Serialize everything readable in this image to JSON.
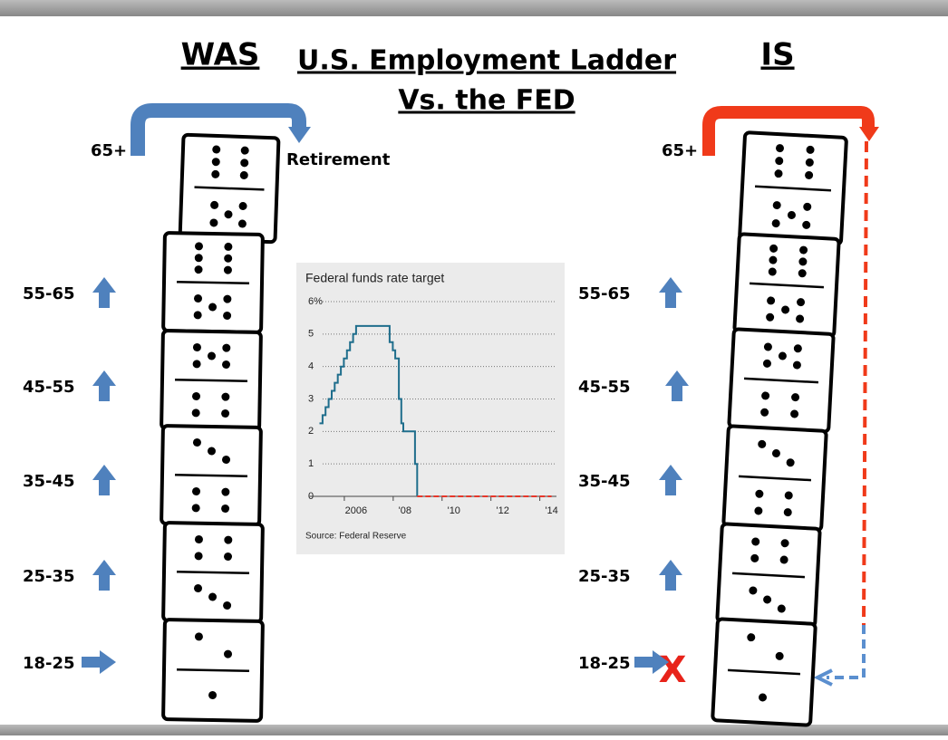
{
  "slide": {
    "title_line1": "U.S. Employment Ladder",
    "title_line2": "Vs. the FED",
    "left_heading": "WAS",
    "right_heading": "IS",
    "left_top_label": "65+",
    "retirement": "Retirement",
    "right_top_label": "65+",
    "left_ages": [
      "55-65",
      "45-55",
      "35-45",
      "25-35",
      "18-25"
    ],
    "right_ages": [
      "55-65",
      "45-55",
      "35-45",
      "25-35",
      "18-25"
    ],
    "blocked_mark": "X"
  },
  "chart_data": {
    "type": "line",
    "title": "Federal funds rate target",
    "source": "Source: Federal Reserve",
    "xlim": [
      2004.1,
      2014.2
    ],
    "xticks": [
      2006,
      {
        "value": 2008,
        "label": "'08"
      },
      {
        "value": 2010,
        "label": "'10"
      },
      {
        "value": 2012,
        "label": "'12"
      },
      {
        "value": 2014,
        "label": "'14"
      }
    ],
    "ylim": [
      0,
      6
    ],
    "yticks": [
      0,
      1,
      2,
      3,
      4,
      5,
      {
        "value": 6,
        "label": "6%"
      }
    ],
    "grid": true,
    "series": [
      {
        "color": "#1f6e8c",
        "dashed": false,
        "x": [
          2004.5,
          2004.625,
          2004.625,
          2004.75,
          2004.75,
          2004.875,
          2004.875,
          2005.0,
          2005.0,
          2005.125,
          2005.125,
          2005.25,
          2005.25,
          2005.375,
          2005.375,
          2005.5,
          2005.5,
          2005.625,
          2005.625,
          2005.75,
          2005.75,
          2005.875,
          2005.875,
          2006.0,
          2006.0,
          2007.37,
          2007.37,
          2007.5,
          2007.5,
          2007.6,
          2007.6,
          2007.75,
          2007.75,
          2007.85,
          2007.85,
          2007.93,
          2007.93,
          2008.41,
          2008.41,
          2008.5,
          2008.5
        ],
        "values": [
          2.25,
          2.25,
          2.5,
          2.5,
          2.75,
          2.75,
          3.0,
          3.0,
          3.25,
          3.25,
          3.5,
          3.5,
          3.75,
          3.75,
          4.0,
          4.0,
          4.25,
          4.25,
          4.5,
          4.5,
          4.75,
          4.75,
          5.0,
          5.0,
          5.25,
          5.25,
          4.75,
          4.75,
          4.5,
          4.5,
          4.25,
          4.25,
          3.0,
          3.0,
          2.25,
          2.25,
          2.0,
          2.0,
          1.0,
          1.0,
          0
        ]
      },
      {
        "color": "#e8372a",
        "dashed": true,
        "x": [
          2008.5,
          2014.0
        ],
        "values": [
          0,
          0
        ]
      }
    ]
  }
}
